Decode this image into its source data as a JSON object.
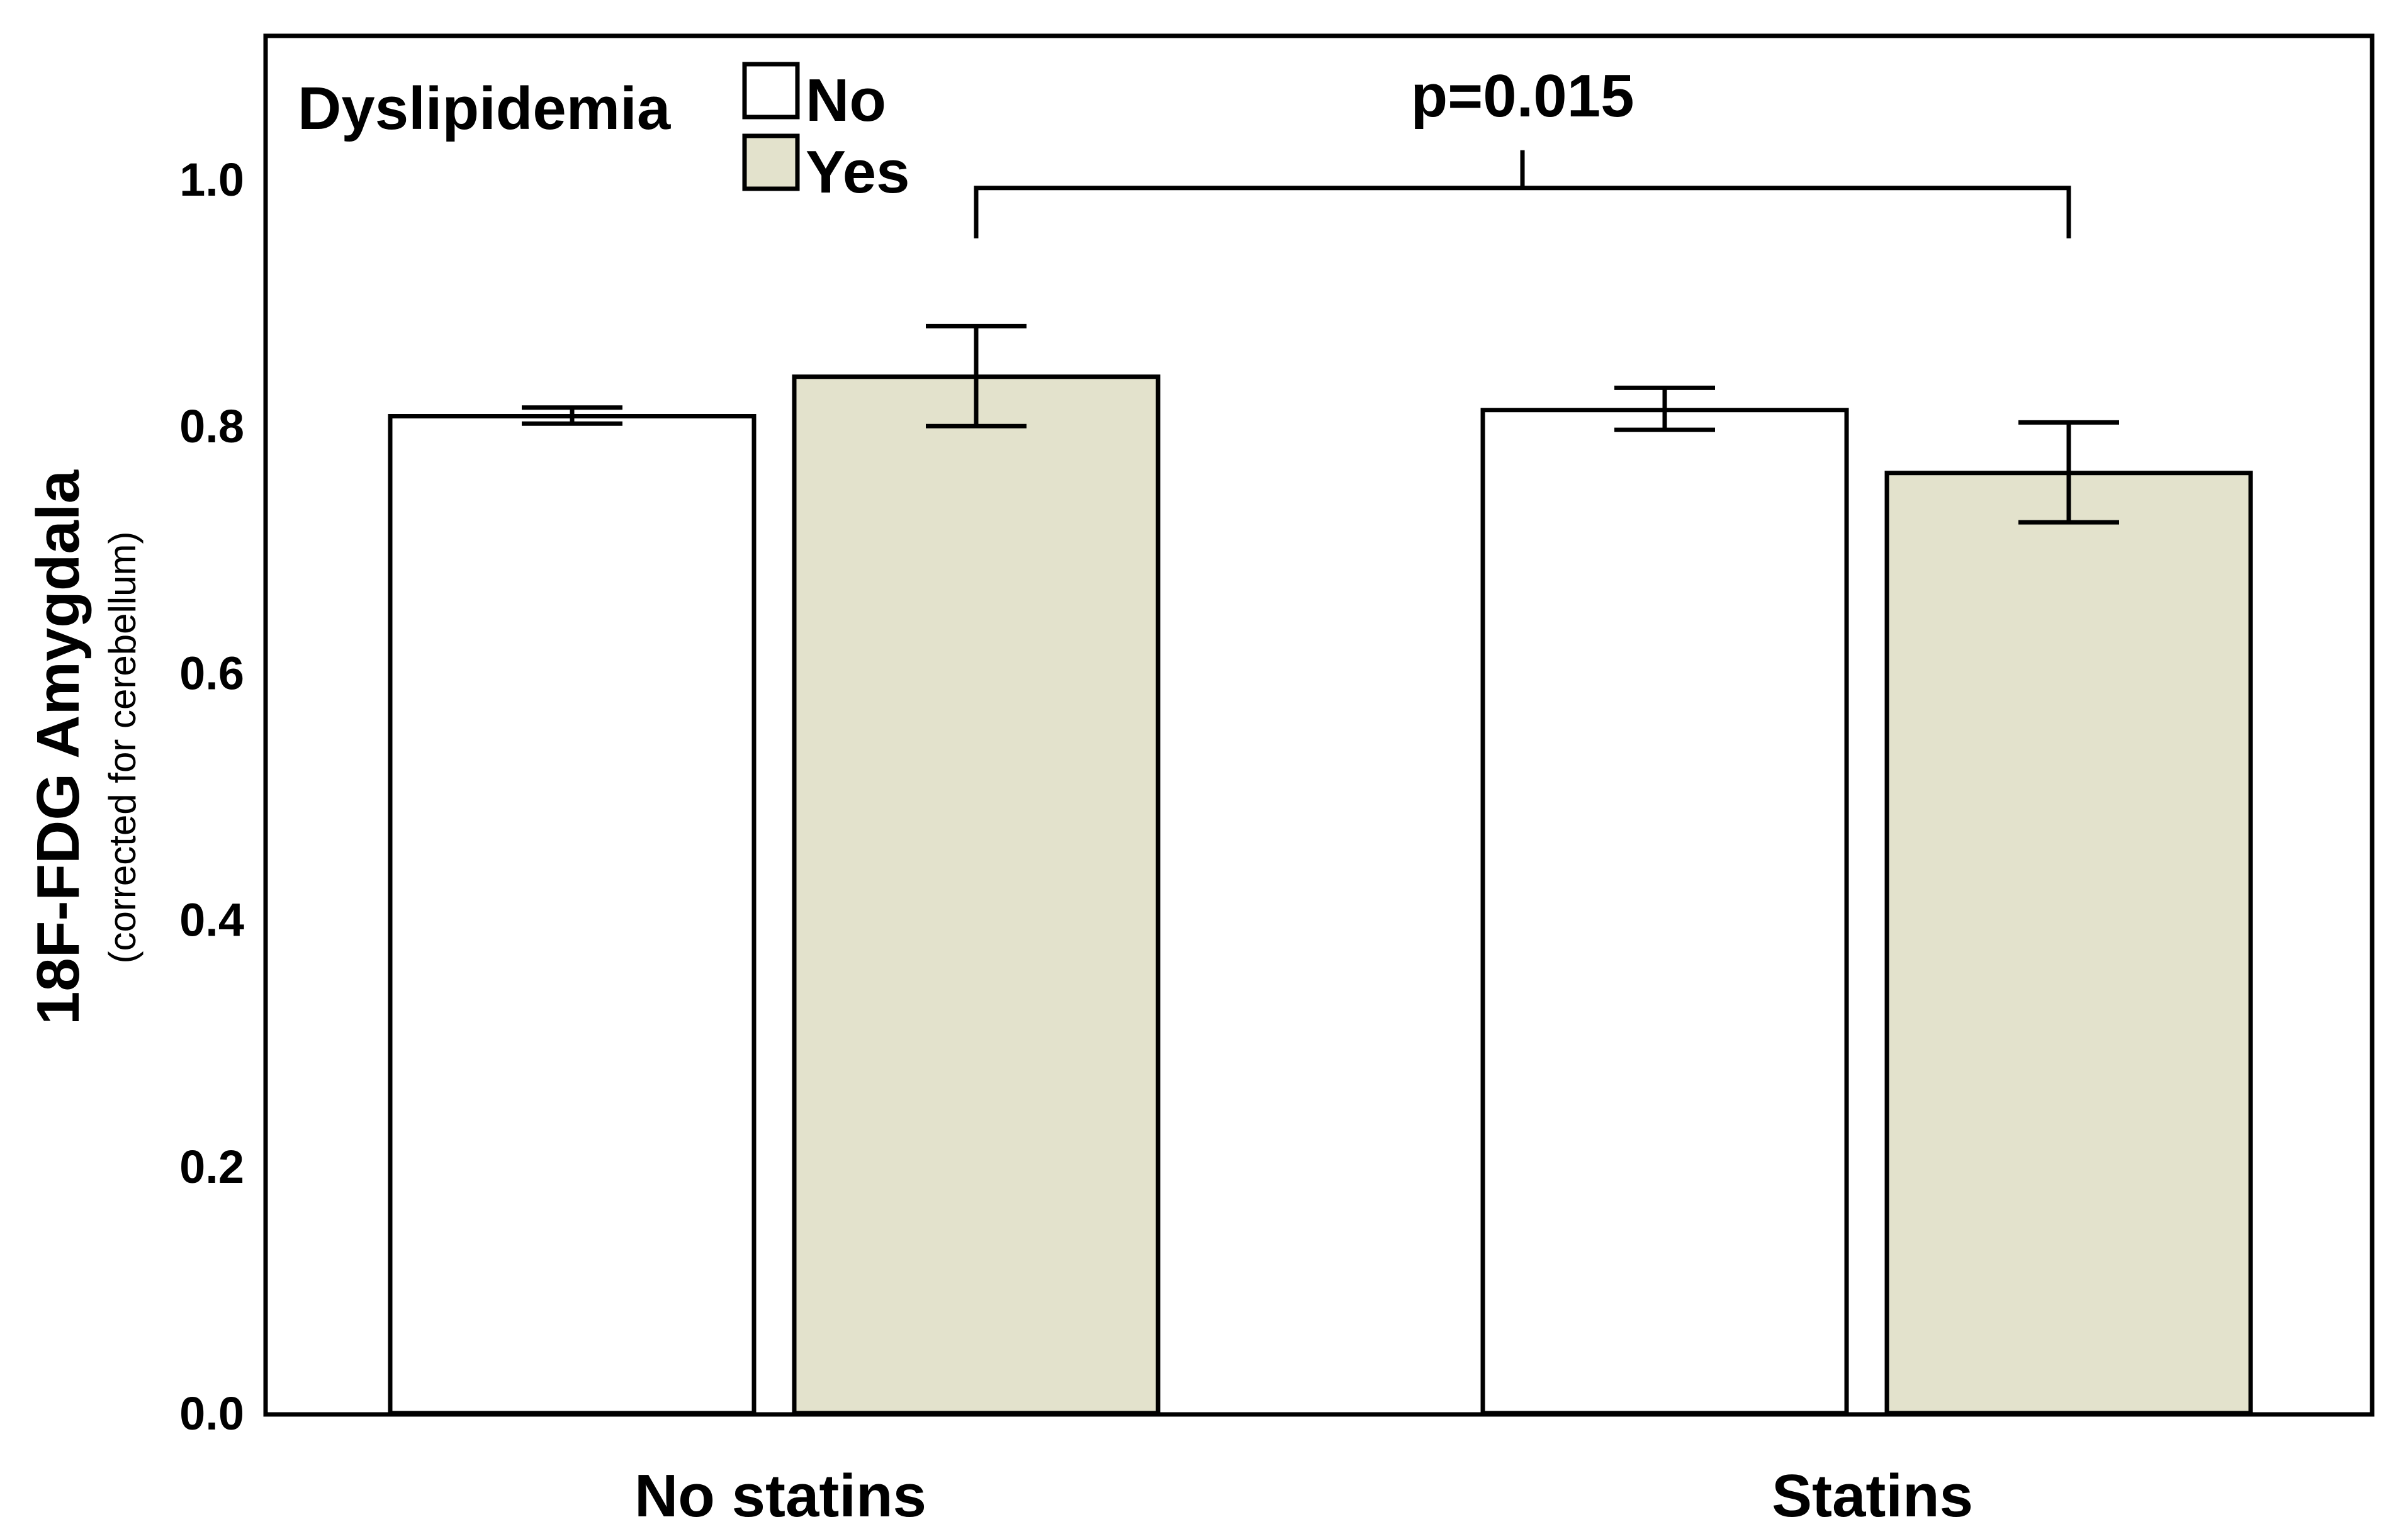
{
  "chart_data": {
    "type": "bar",
    "title": "",
    "xlabel": "",
    "ylabel": "18F-FDG Amygdala",
    "ylabel_sub": "(corrected for cerebellum)",
    "ylim": [
      0,
      1.12
    ],
    "yticks": [
      0.0,
      0.2,
      0.4,
      0.6,
      0.8,
      1.0
    ],
    "ytick_labels": [
      "0.0",
      "0.2",
      "0.4",
      "0.6",
      "0.8",
      "1.0"
    ],
    "categories": [
      "No statins",
      "Statins"
    ],
    "legend": {
      "title": "Dyslipidemia",
      "position": "top-left"
    },
    "series": [
      {
        "name": "No",
        "color": "#ffffff",
        "values": [
          0.808,
          0.813
        ],
        "err_low": [
          0.802,
          0.797
        ],
        "err_high": [
          0.815,
          0.831
        ]
      },
      {
        "name": "Yes",
        "color": "#e3e2cc",
        "values": [
          0.84,
          0.762
        ],
        "err_low": [
          0.8,
          0.722
        ],
        "err_high": [
          0.881,
          0.803
        ]
      }
    ],
    "annotation": {
      "text": "p=0.015",
      "from": "No statins / Yes",
      "to": "Statins / Yes",
      "bracket_y": 0.993
    }
  }
}
